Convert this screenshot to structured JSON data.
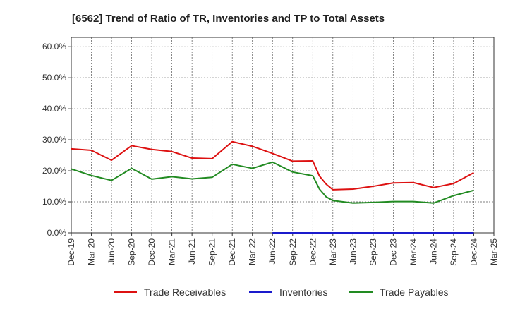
{
  "chart_data": {
    "type": "line",
    "title": "[6562]  Trend of Ratio of TR, Inventories and TP to Total Assets",
    "xlabel": "",
    "ylabel": "",
    "ylim": [
      0,
      63
    ],
    "y_ticks": [
      "0.0%",
      "10.0%",
      "20.0%",
      "30.0%",
      "40.0%",
      "50.0%",
      "60.0%"
    ],
    "y_tick_values": [
      0,
      10,
      20,
      30,
      40,
      50,
      60
    ],
    "x_ticks": [
      "Dec-19",
      "Mar-20",
      "Jun-20",
      "Sep-20",
      "Dec-20",
      "Mar-21",
      "Jun-21",
      "Sep-21",
      "Dec-21",
      "Mar-22",
      "Jun-22",
      "Sep-22",
      "Dec-22",
      "Mar-23",
      "Jun-23",
      "Sep-23",
      "Dec-23",
      "Mar-24",
      "Jun-24",
      "Sep-24",
      "Dec-24",
      "Mar-25"
    ],
    "grid": true,
    "legend_position": "bottom",
    "series": [
      {
        "name": "Trade Receivables",
        "color": "#dd1111",
        "points": [
          [
            "Dec-19",
            27.1
          ],
          [
            "Mar-20",
            26.6
          ],
          [
            "Jun-20",
            23.4
          ],
          [
            "Sep-20",
            28.1
          ],
          [
            "Dec-20",
            26.9
          ],
          [
            "Mar-21",
            26.2
          ],
          [
            "Jun-21",
            24.1
          ],
          [
            "Sep-21",
            23.9
          ],
          [
            "Dec-21",
            29.4
          ],
          [
            "Mar-22",
            27.9
          ],
          [
            "Jun-22",
            25.6
          ],
          [
            "Sep-22",
            23.1
          ],
          [
            "Dec-22",
            23.2
          ],
          [
            "Jan-23",
            18.3
          ],
          [
            "Feb-23",
            15.7
          ],
          [
            "Mar-23",
            13.9
          ],
          [
            "Jun-23",
            14.1
          ],
          [
            "Sep-23",
            15.0
          ],
          [
            "Dec-23",
            16.1
          ],
          [
            "Mar-24",
            16.2
          ],
          [
            "Jun-24",
            14.6
          ],
          [
            "Sep-24",
            15.9
          ],
          [
            "Dec-24",
            19.4
          ]
        ]
      },
      {
        "name": "Inventories",
        "color": "#1a1acc",
        "points": [
          [
            "Jun-22",
            0.0
          ],
          [
            "Sep-22",
            0.0
          ],
          [
            "Dec-22",
            0.0
          ],
          [
            "Mar-23",
            0.0
          ],
          [
            "Jun-23",
            0.0
          ],
          [
            "Sep-23",
            0.0
          ],
          [
            "Dec-23",
            0.0
          ],
          [
            "Mar-24",
            0.0
          ],
          [
            "Jun-24",
            0.0
          ],
          [
            "Sep-24",
            0.0
          ],
          [
            "Dec-24",
            0.0
          ]
        ]
      },
      {
        "name": "Trade Payables",
        "color": "#228b22",
        "points": [
          [
            "Dec-19",
            20.6
          ],
          [
            "Mar-20",
            18.5
          ],
          [
            "Jun-20",
            16.9
          ],
          [
            "Sep-20",
            20.8
          ],
          [
            "Dec-20",
            17.3
          ],
          [
            "Mar-21",
            18.1
          ],
          [
            "Jun-21",
            17.4
          ],
          [
            "Sep-21",
            17.9
          ],
          [
            "Dec-21",
            22.1
          ],
          [
            "Mar-22",
            20.8
          ],
          [
            "Jun-22",
            22.8
          ],
          [
            "Sep-22",
            19.6
          ],
          [
            "Dec-22",
            18.4
          ],
          [
            "Jan-23",
            14.1
          ],
          [
            "Feb-23",
            11.6
          ],
          [
            "Mar-23",
            10.4
          ],
          [
            "Jun-23",
            9.6
          ],
          [
            "Sep-23",
            9.8
          ],
          [
            "Dec-23",
            10.1
          ],
          [
            "Mar-24",
            10.1
          ],
          [
            "Jun-24",
            9.6
          ],
          [
            "Sep-24",
            12.0
          ],
          [
            "Dec-24",
            13.7
          ]
        ]
      }
    ]
  }
}
